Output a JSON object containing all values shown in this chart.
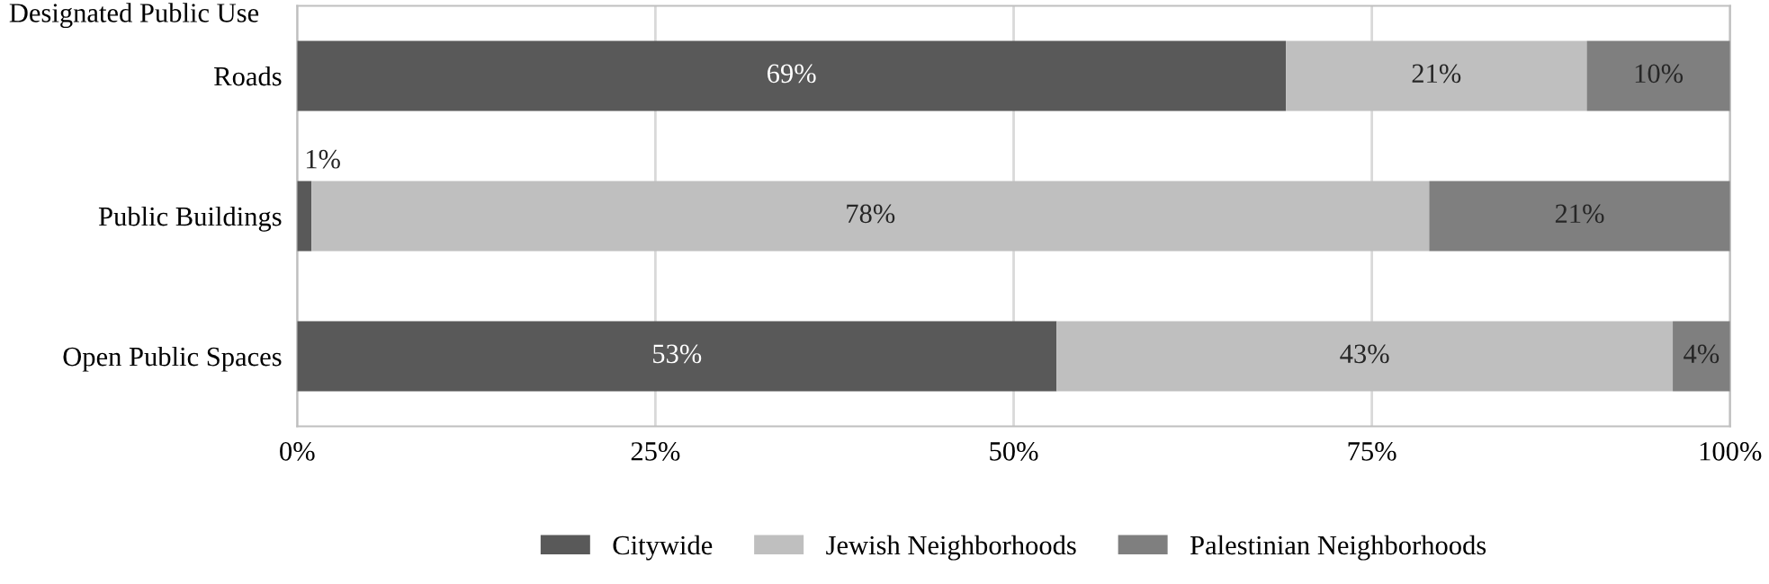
{
  "chart_data": {
    "type": "bar",
    "orientation": "horizontal",
    "stacked": true,
    "ylabel": "Designated Public Use",
    "categories": [
      "Roads",
      "Public Buildings",
      "Open Public Spaces"
    ],
    "series": [
      {
        "name": "Citywide",
        "color": "#595959",
        "values": [
          69,
          1,
          53
        ],
        "value_labels": [
          "69%",
          "1%",
          "53%"
        ]
      },
      {
        "name": "Jewish Neighborhoods",
        "color": "#bfbfbf",
        "values": [
          21,
          78,
          43
        ],
        "value_labels": [
          "21%",
          "78%",
          "43%"
        ]
      },
      {
        "name": "Palestinian Neighborhoods",
        "color": "#7f7f7f",
        "values": [
          10,
          21,
          4
        ],
        "value_labels": [
          "10%",
          "21%",
          "4%"
        ]
      }
    ],
    "xlim": [
      0,
      100
    ],
    "xticks": [
      {
        "value": 0,
        "label": "0%"
      },
      {
        "value": 25,
        "label": "25%"
      },
      {
        "value": 50,
        "label": "50%"
      },
      {
        "value": 75,
        "label": "75%"
      },
      {
        "value": 100,
        "label": "100%"
      }
    ],
    "grid": "x",
    "legend": "bottom"
  }
}
